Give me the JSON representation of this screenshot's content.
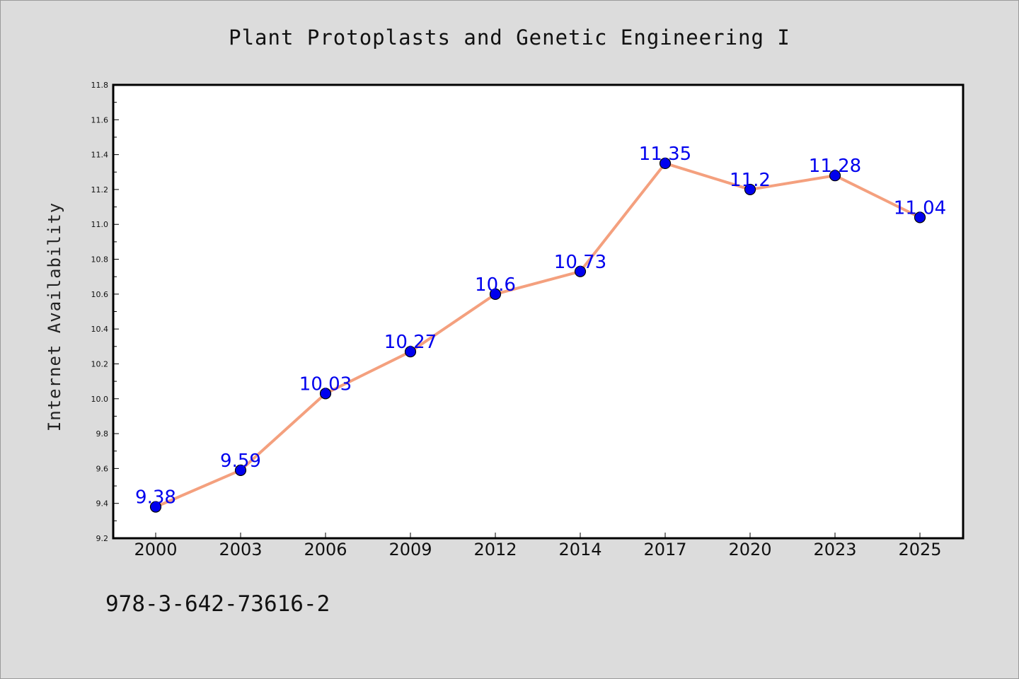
{
  "page": {
    "footer": "978-3-642-73616-2"
  },
  "colors": {
    "line": "#f4a07e",
    "marker": "#0000ee",
    "label": "#0000ee",
    "plot_background": "#ffffff",
    "page_background": "#dcdcdc"
  },
  "chart_data": {
    "type": "line",
    "title": "Plant Protoplasts and Genetic Engineering I",
    "xlabel": "",
    "ylabel": "Internet Availability",
    "categories": [
      "2000",
      "2003",
      "2006",
      "2009",
      "2012",
      "2014",
      "2017",
      "2020",
      "2023",
      "2025"
    ],
    "series": [
      {
        "values": [
          9.38,
          9.59,
          10.03,
          10.27,
          10.6,
          10.73,
          11.35,
          11.2,
          11.28,
          11.04
        ],
        "labels": [
          "9.38",
          "9.59",
          "10.03",
          "10.27",
          "10.6",
          "10.73",
          "11.35",
          "11.2",
          "11.28",
          "11.04"
        ]
      }
    ],
    "ylim": [
      9.2,
      11.8
    ],
    "yticks": [
      "9.2",
      "9.4",
      "9.6",
      "9.8",
      "10.0",
      "10.2",
      "10.4",
      "10.6",
      "10.8",
      "11.0",
      "11.2",
      "11.4",
      "11.6",
      "11.8"
    ],
    "grid": false,
    "legend": "none",
    "markers": "filled-circle"
  }
}
